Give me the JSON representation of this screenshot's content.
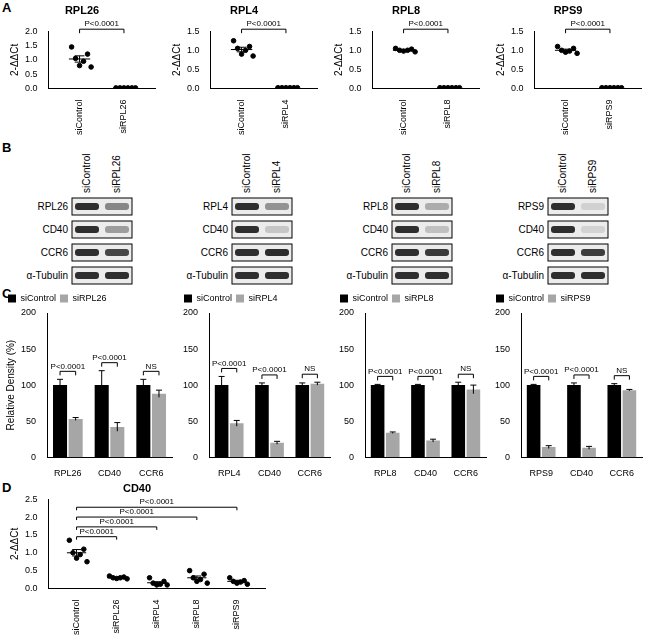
{
  "panels": [
    "A",
    "B",
    "C",
    "D"
  ],
  "chart_data": [
    {
      "type": "scatter",
      "title": "RPL26",
      "ylabel": "2-ΔΔCt",
      "categories": [
        "siControl",
        "siRPL26"
      ],
      "values": [
        [
          1.45,
          1.2,
          1.05,
          0.95,
          0.8,
          0.75
        ],
        [
          0.02,
          0.02,
          0.02,
          0.02,
          0.02,
          0.02
        ]
      ],
      "means": [
        1.03,
        0.02
      ],
      "errors": [
        0.11,
        0
      ],
      "ylim": [
        0,
        2
      ],
      "yticks": [
        {
          "value": 0,
          "label": "0.0"
        },
        0.5,
        {
          "value": 1,
          "label": "1.0"
        },
        1.5,
        {
          "value": 2,
          "label": "2.0"
        }
      ],
      "annotation": "P<0.0001",
      "color": "#000000",
      "marker": "circle",
      "grid": false
    },
    {
      "type": "scatter",
      "title": "RPL4",
      "ylabel": "2-ΔΔCt",
      "categories": [
        "siControl",
        "siRPL4"
      ],
      "values": [
        [
          1.25,
          1.1,
          1.05,
          1.0,
          0.9,
          0.85
        ],
        [
          0.02,
          0.02,
          0.02,
          0.02,
          0.02,
          0.02
        ]
      ],
      "means": [
        1.02,
        0.02
      ],
      "errors": [
        0.06,
        0
      ],
      "ylim": [
        0,
        1.5
      ],
      "yticks": [
        {
          "value": 0,
          "label": "0.0"
        },
        0.5,
        {
          "value": 1,
          "label": "1.0"
        },
        1.5
      ],
      "annotation": "P<0.0001",
      "color": "#000000",
      "marker": "circle",
      "grid": false
    },
    {
      "type": "scatter",
      "title": "RPL8",
      "ylabel": "2-ΔΔCt",
      "categories": [
        "siControl",
        "siRPL8"
      ],
      "values": [
        [
          1.05,
          1.03,
          1.0,
          1.0,
          0.98,
          0.96
        ],
        [
          0.02,
          0.02,
          0.02,
          0.02,
          0.02,
          0.02
        ]
      ],
      "means": [
        1.0,
        0.02
      ],
      "errors": [
        0.02,
        0
      ],
      "ylim": [
        0,
        1.5
      ],
      "yticks": [
        {
          "value": 0,
          "label": "0.0"
        },
        0.5,
        {
          "value": 1,
          "label": "1.0"
        },
        1.5
      ],
      "annotation": "P<0.0001",
      "color": "#000000",
      "marker": "circle",
      "grid": false
    },
    {
      "type": "scatter",
      "title": "RPS9",
      "ylabel": "2-ΔΔCt",
      "categories": [
        "siControl",
        "siRPS9"
      ],
      "values": [
        [
          1.1,
          1.05,
          1.0,
          0.98,
          0.95,
          0.92
        ],
        [
          0.02,
          0.02,
          0.02,
          0.02,
          0.02,
          0.02
        ]
      ],
      "means": [
        1.0,
        0.02
      ],
      "errors": [
        0.03,
        0
      ],
      "ylim": [
        0,
        1.5
      ],
      "yticks": [
        {
          "value": 0,
          "label": "0.0"
        },
        0.5,
        {
          "value": 1,
          "label": "1.0"
        },
        1.5
      ],
      "annotation": "P<0.0001",
      "color": "#000000",
      "marker": "circle",
      "grid": false
    },
    {
      "type": "bar",
      "ylabel": "Relative Density (%)",
      "categories": [
        "RPL26",
        "CD40",
        "CCR6"
      ],
      "series": [
        {
          "name": "siControl",
          "color": "#000000",
          "values": [
            100,
            100,
            100
          ],
          "errors": [
            8,
            20,
            8
          ]
        },
        {
          "name": "siRPL26",
          "color": "#a6a6a6",
          "values": [
            53,
            42,
            88
          ],
          "errors": [
            2,
            6,
            5
          ]
        }
      ],
      "ylim": [
        0,
        200
      ],
      "yticks": [
        0,
        50,
        100,
        150,
        200
      ],
      "annotations": [
        "P<0.0001",
        "P<0.0001",
        "NS"
      ],
      "legend": "top-left",
      "grid": false
    },
    {
      "type": "bar",
      "categories": [
        "RPL4",
        "CD40",
        "CCR6"
      ],
      "series": [
        {
          "name": "siControl",
          "color": "#000000",
          "values": [
            100,
            100,
            100
          ],
          "errors": [
            12,
            3,
            3
          ]
        },
        {
          "name": "siRPL4",
          "color": "#a6a6a6",
          "values": [
            47,
            20,
            102
          ],
          "errors": [
            4,
            2,
            2
          ]
        }
      ],
      "ylim": [
        0,
        200
      ],
      "yticks": [
        0,
        50,
        100,
        150,
        200
      ],
      "annotations": [
        "P<0.0001",
        "P<0.0001",
        "NS"
      ],
      "legend": "top-left",
      "grid": false
    },
    {
      "type": "bar",
      "categories": [
        "RPL8",
        "CD40",
        "CCR6"
      ],
      "series": [
        {
          "name": "siControl",
          "color": "#000000",
          "values": [
            100,
            100,
            100
          ],
          "errors": [
            1,
            1,
            4
          ]
        },
        {
          "name": "siRPL8",
          "color": "#a6a6a6",
          "values": [
            34,
            23,
            94
          ],
          "errors": [
            1,
            2,
            6
          ]
        }
      ],
      "ylim": [
        0,
        200
      ],
      "yticks": [
        0,
        50,
        100,
        150,
        200
      ],
      "annotations": [
        "P<0.0001",
        "P<0.0001",
        "NS"
      ],
      "legend": "top-left",
      "grid": false
    },
    {
      "type": "bar",
      "categories": [
        "RPS9",
        "CD40",
        "CCR6"
      ],
      "series": [
        {
          "name": "siControl",
          "color": "#000000",
          "values": [
            100,
            100,
            100
          ],
          "errors": [
            1,
            3,
            2
          ]
        },
        {
          "name": "siRPS9",
          "color": "#a6a6a6",
          "values": [
            14,
            13,
            93
          ],
          "errors": [
            2,
            2,
            1
          ]
        }
      ],
      "ylim": [
        0,
        200
      ],
      "yticks": [
        0,
        50,
        100,
        150,
        200
      ],
      "annotations": [
        "P<0.0001",
        "P<0.0001",
        "NS"
      ],
      "legend": "top-left",
      "grid": false
    },
    {
      "type": "scatter",
      "title": "CD40",
      "ylabel": "2-ΔΔCt",
      "categories": [
        "siControl",
        "siRPL26",
        "siRPL4",
        "siRPL8",
        "siRPS9"
      ],
      "values": [
        [
          1.35,
          1.1,
          1.0,
          0.95,
          0.85,
          0.75
        ],
        [
          0.35,
          0.32,
          0.3,
          0.3,
          0.28,
          0.27
        ],
        [
          0.3,
          0.2,
          0.15,
          0.12,
          0.1,
          0.1
        ],
        [
          0.5,
          0.4,
          0.3,
          0.25,
          0.2,
          0.15
        ],
        [
          0.3,
          0.22,
          0.2,
          0.18,
          0.15,
          0.12
        ]
      ],
      "means": [
        1.0,
        0.3,
        0.16,
        0.3,
        0.2
      ],
      "errors": [
        0.09,
        0.01,
        0.03,
        0.05,
        0.03
      ],
      "ylim": [
        0,
        2.5
      ],
      "yticks": [
        {
          "value": 0,
          "label": "0.0"
        },
        0.5,
        {
          "value": 1,
          "label": "1.0"
        },
        1.5,
        {
          "value": 2,
          "label": "2.0"
        },
        2.5
      ],
      "annotations": [
        "P<0.0001",
        "P<0.0001",
        "P<0.0001",
        "P<0.0001"
      ],
      "color": "#000000",
      "marker": "circle",
      "grid": false
    }
  ],
  "blots": [
    {
      "columns": [
        "siControl",
        "siRPL26"
      ],
      "rows": [
        "RPL26",
        "CD40",
        "CCR6",
        "α-Tubulin"
      ]
    },
    {
      "columns": [
        "siControl",
        "siRPL4"
      ],
      "rows": [
        "RPL4",
        "CD40",
        "CCR6",
        "α-Tubulin"
      ]
    },
    {
      "columns": [
        "siControl",
        "siRPL8"
      ],
      "rows": [
        "RPL8",
        "CD40",
        "CCR6",
        "α-Tubulin"
      ]
    },
    {
      "columns": [
        "siControl",
        "siRPS9"
      ],
      "rows": [
        "RPS9",
        "CD40",
        "CCR6",
        "α-Tubulin"
      ]
    }
  ]
}
